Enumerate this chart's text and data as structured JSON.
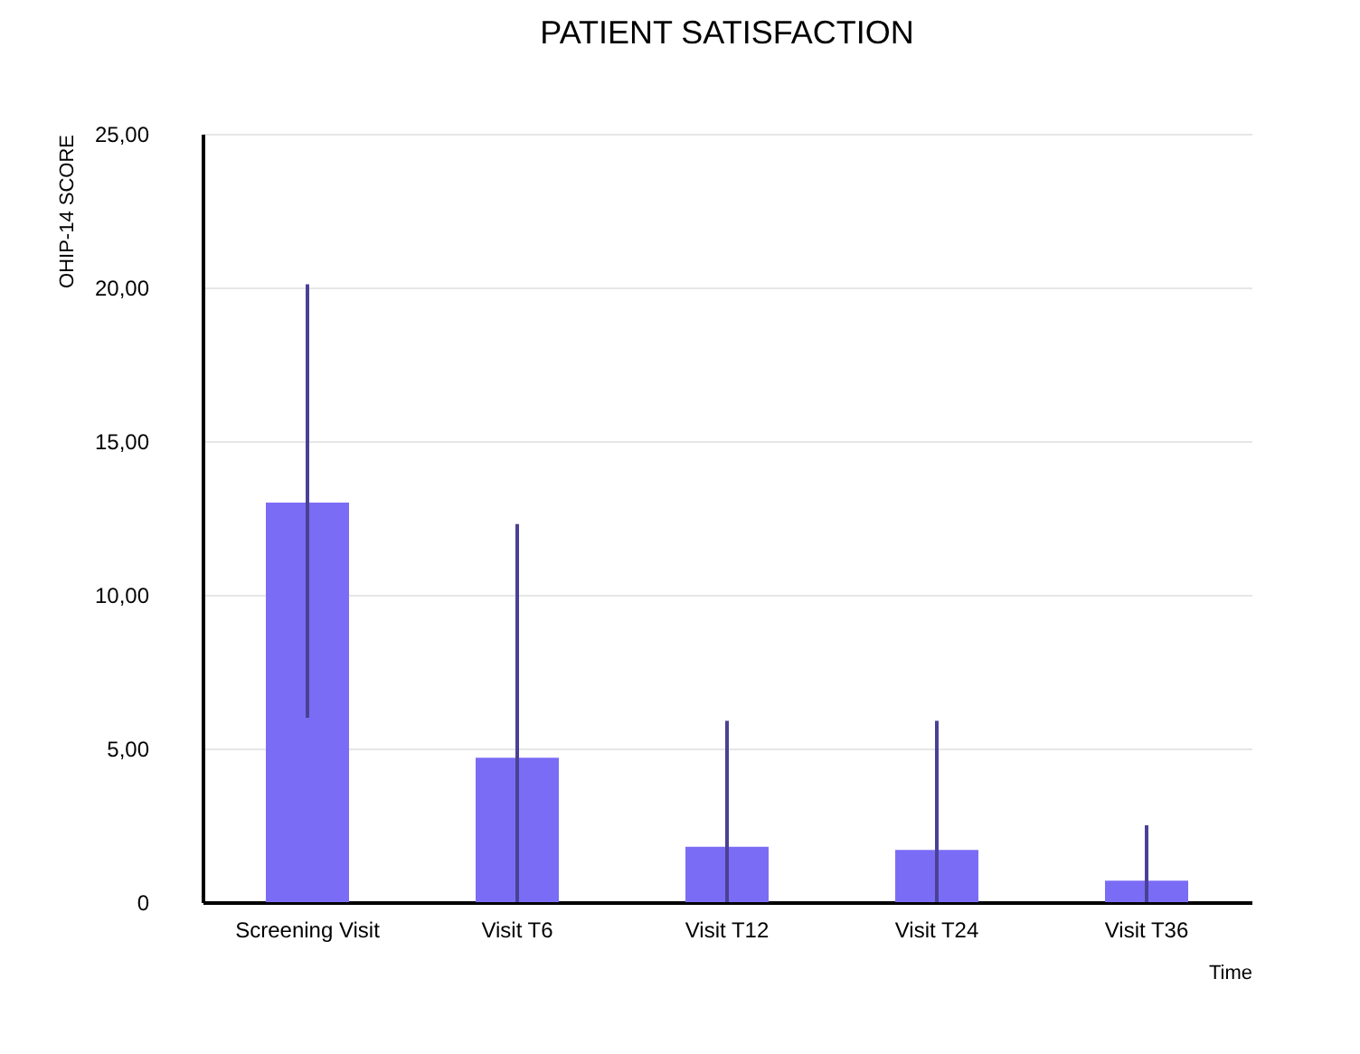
{
  "chart_data": {
    "type": "bar",
    "title": "PATIENT SATISFACTION",
    "xlabel": "Time",
    "ylabel": "OHIP-14  SCORE",
    "categories": [
      "Screening Visit",
      "Visit T6",
      "Visit T12",
      "Visit T24",
      "Visit T36"
    ],
    "values": [
      13.0,
      4.7,
      1.8,
      1.7,
      0.7
    ],
    "errors": [
      [
        6.0,
        20.1
      ],
      [
        0,
        12.3
      ],
      [
        0,
        5.9
      ],
      [
        0,
        5.9
      ],
      [
        0,
        2.5
      ]
    ],
    "color": "#7b6cf6",
    "ylim": [
      0,
      25
    ],
    "yticks": [
      {
        "value": 0,
        "label": "0"
      },
      {
        "value": 5,
        "label": "5,00"
      },
      {
        "value": 10,
        "label": "10,00"
      },
      {
        "value": 15,
        "label": "15,00"
      },
      {
        "value": 20,
        "label": "20,00"
      },
      {
        "value": 25,
        "label": "25,00"
      }
    ],
    "grid": "y"
  }
}
